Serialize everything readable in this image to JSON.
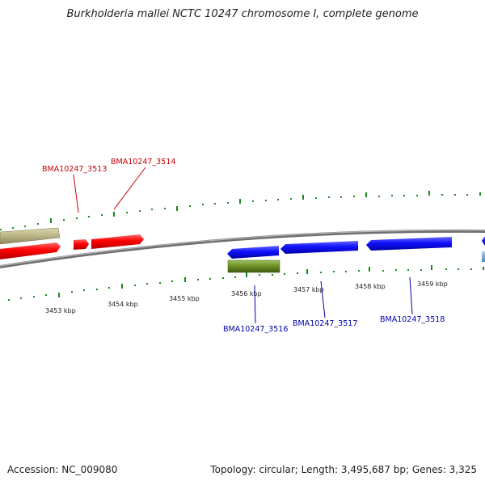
{
  "title": "Burkholderia mallei NCTC 10247 chromosome I, complete genome",
  "footer": {
    "accession": "Accession: NC_009080",
    "summary": "Topology: circular; Length: 3,495,687 bp; Genes: 3,325"
  },
  "colors": {
    "backbone": "#808080",
    "ticks": "#1a8a1a",
    "forward_genes": "#e00000",
    "reverse_genes": "#0000ff",
    "rna_forward": "#b8b380",
    "rna_reverse": "#6b8e23",
    "label_forward": "#cc0000",
    "label_reverse": "#0000aa"
  },
  "scale": {
    "ticks": [
      {
        "label": "3453 kbp"
      },
      {
        "label": "3454 kbp"
      },
      {
        "label": "3455 kbp"
      },
      {
        "label": "3456 kbp"
      },
      {
        "label": "3457 kbp"
      },
      {
        "label": "3458 kbp"
      },
      {
        "label": "3459 kbp"
      }
    ]
  },
  "features": {
    "forward_labeled": [
      {
        "label": "BMA10247_3513"
      },
      {
        "label": "BMA10247_3514"
      }
    ],
    "reverse_labeled": [
      {
        "label": "BMA10247_3516"
      },
      {
        "label": "BMA10247_3517"
      },
      {
        "label": "BMA10247_3518"
      }
    ]
  }
}
